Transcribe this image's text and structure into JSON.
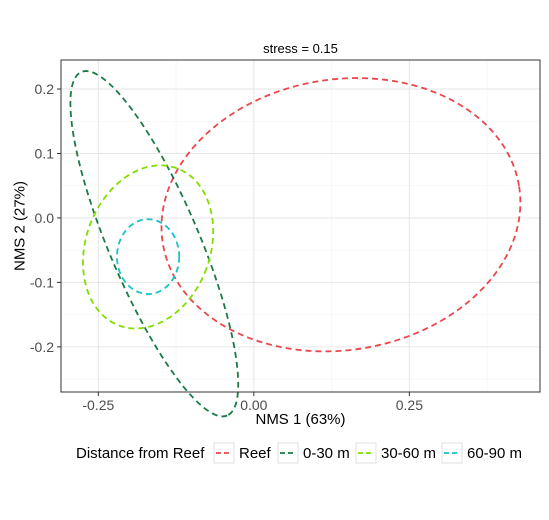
{
  "chart_data": {
    "type": "scatter",
    "title": "stress = 0.15",
    "xlabel": "NMS 1 (63%)",
    "ylabel": "NMS 2 (27%)",
    "xlim": [
      -0.31,
      0.46
    ],
    "ylim": [
      -0.27,
      0.245
    ],
    "x_ticks": [
      -0.25,
      0.0,
      0.25
    ],
    "x_tick_labels": [
      "-0.25",
      "0.00",
      "0.25"
    ],
    "y_ticks": [
      -0.2,
      -0.1,
      0.0,
      0.1,
      0.2
    ],
    "y_tick_labels": [
      "-0.2",
      "-0.1",
      "0.0",
      "0.1",
      "0.2"
    ],
    "grid": true,
    "legend": {
      "title": "Distance from Reef",
      "placement": "bottom"
    },
    "series": [
      {
        "name": "Reef",
        "color": "#e8474c",
        "ellipse": {
          "cx": 0.14,
          "cy": 0.005,
          "rx": 0.29,
          "ry": 0.21,
          "angle_deg": 9
        }
      },
      {
        "name": "0-30 m",
        "color": "#1b7a45",
        "ellipse": {
          "cx": -0.16,
          "cy": -0.04,
          "rx": 0.3,
          "ry": 0.07,
          "angle_deg": -67
        }
      },
      {
        "name": "30-60 m",
        "color": "#7fe000",
        "ellipse": {
          "cx": -0.17,
          "cy": -0.045,
          "rx": 0.1,
          "ry": 0.13,
          "angle_deg": -20
        }
      },
      {
        "name": "60-90 m",
        "color": "#17c2c9",
        "ellipse": {
          "cx": -0.17,
          "cy": -0.06,
          "rx": 0.05,
          "ry": 0.058,
          "angle_deg": 0
        }
      }
    ]
  }
}
